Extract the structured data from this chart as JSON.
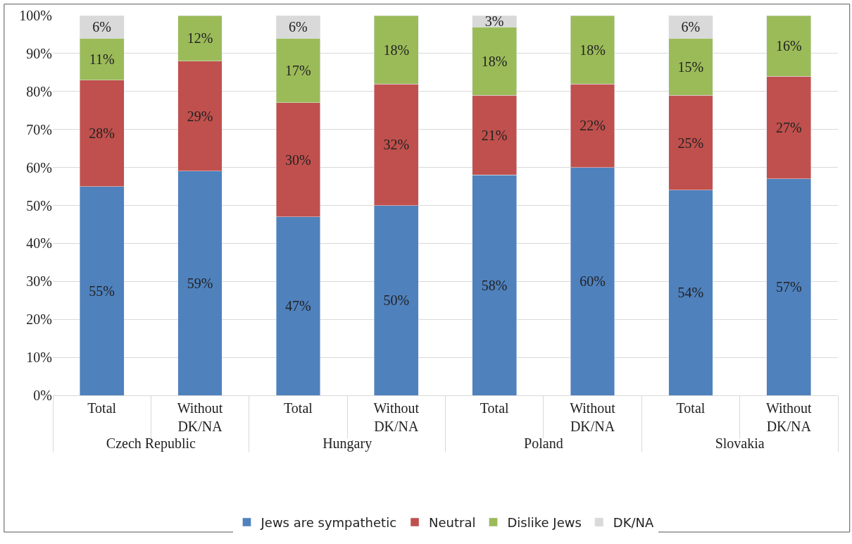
{
  "chart_data": {
    "type": "bar",
    "stacked": true,
    "categories": [
      "Total",
      "Without DK/NA",
      "Total",
      "Without DK/NA",
      "Total",
      "Without DK/NA",
      "Total",
      "Without DK/NA"
    ],
    "annotations": [
      "Czech Republic",
      "Hungary",
      "Poland",
      "Slovakia"
    ],
    "series": [
      {
        "name": "Jews are sympathetic",
        "color": "#4f81bd",
        "values": [
          55,
          59,
          47,
          50,
          58,
          60,
          54,
          57
        ],
        "value_labels": [
          "55%",
          "59%",
          "47%",
          "50%",
          "58%",
          "60%",
          "54%",
          "57%"
        ]
      },
      {
        "name": "Neutral",
        "color": "#c0504d",
        "values": [
          28,
          29,
          30,
          32,
          21,
          22,
          25,
          27
        ],
        "value_labels": [
          "28%",
          "29%",
          "30%",
          "32%",
          "21%",
          "22%",
          "25%",
          "27%"
        ]
      },
      {
        "name": "Dislike Jews",
        "color": "#9bbb59",
        "values": [
          11,
          12,
          17,
          18,
          18,
          18,
          15,
          16
        ],
        "value_labels": [
          "11%",
          "12%",
          "17%",
          "18%",
          "18%",
          "18%",
          "15%",
          "16%"
        ]
      },
      {
        "name": "DK/NA",
        "color": "#d9d9d9",
        "values": [
          6,
          null,
          6,
          null,
          3,
          null,
          6,
          null
        ],
        "value_labels": [
          "6%",
          null,
          "6%",
          null,
          "3%",
          null,
          "6%",
          null
        ]
      }
    ],
    "ylim": [
      0,
      100
    ],
    "yticks": [
      {
        "value": 0,
        "label": "0%"
      },
      {
        "value": 10,
        "label": "10%"
      },
      {
        "value": 20,
        "label": "20%"
      },
      {
        "value": 30,
        "label": "30%"
      },
      {
        "value": 40,
        "label": "40%"
      },
      {
        "value": 50,
        "label": "50%"
      },
      {
        "value": 60,
        "label": "60%"
      },
      {
        "value": 70,
        "label": "70%"
      },
      {
        "value": 80,
        "label": "80%"
      },
      {
        "value": 90,
        "label": "90%"
      },
      {
        "value": 100,
        "label": "100%"
      }
    ],
    "grid": "y",
    "legend": "bottom"
  }
}
